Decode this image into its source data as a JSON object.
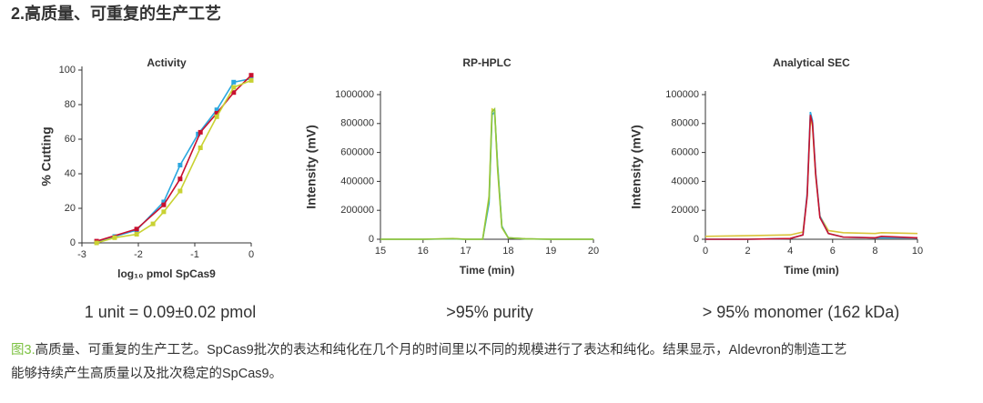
{
  "heading": "2.高质量、可重复的生产工艺",
  "chart_data": [
    {
      "type": "line",
      "title": "Activity",
      "xlabel": "log₁₀ pmol SpCas9",
      "ylabel": "% Cutting",
      "markers": true,
      "xlim": [
        -3,
        0
      ],
      "xticks": [
        -3,
        -2,
        -1,
        0
      ],
      "ylim": [
        0,
        100
      ],
      "yticks": [
        0,
        20,
        40,
        60,
        80,
        100
      ],
      "series": [
        {
          "color": "#2aa7df",
          "x": [
            -2.74,
            -2.42,
            -2.03,
            -1.55,
            -1.26,
            -0.94,
            -0.61,
            -0.31,
            0
          ],
          "values": [
            0.5,
            3.7,
            7.4,
            23.7,
            45,
            63,
            77,
            93,
            95
          ]
        },
        {
          "color": "#c8102e",
          "x": [
            -2.74,
            -2.03,
            -1.55,
            -1.26,
            -0.9,
            -0.61,
            -0.31,
            0
          ],
          "values": [
            1,
            8,
            22,
            37,
            64,
            75,
            87,
            97
          ]
        },
        {
          "color": "#c9d233",
          "x": [
            -2.74,
            -2.42,
            -2.03,
            -1.74,
            -1.55,
            -1.26,
            -0.9,
            -0.61,
            -0.31,
            0
          ],
          "values": [
            0,
            3,
            5,
            11,
            18,
            30,
            55,
            73,
            90,
            94
          ]
        }
      ]
    },
    {
      "type": "line",
      "title": "RP-HPLC",
      "xlabel": "Time (min)",
      "ylabel": "Intensity (mV)",
      "xlim": [
        15,
        20
      ],
      "xticks": [
        15,
        16,
        17,
        18,
        19,
        20
      ],
      "ylim": [
        0,
        1000000
      ],
      "yticks": [
        0,
        200000,
        400000,
        600000,
        800000,
        1000000
      ],
      "x": [
        15,
        16,
        16.7,
        17,
        17.4,
        17.55,
        17.62,
        17.68,
        17.75,
        17.85,
        18,
        18.4,
        19,
        20
      ],
      "series": [
        {
          "color": "#29a8e0",
          "values": [
            0,
            0,
            3000,
            0,
            0,
            250000,
            860000,
            880000,
            520000,
            90000,
            10000,
            3000,
            0,
            0
          ]
        },
        {
          "color": "#d4d23a",
          "values": [
            0,
            0,
            5000,
            0,
            0,
            300000,
            900000,
            890000,
            480000,
            80000,
            10000,
            4000,
            0,
            0
          ]
        },
        {
          "color": "#8dc63f",
          "values": [
            0,
            0,
            4000,
            0,
            0,
            280000,
            880000,
            900000,
            500000,
            85000,
            10000,
            3000,
            0,
            0
          ]
        }
      ]
    },
    {
      "type": "line",
      "title": "Analytical SEC",
      "xlabel": "Time (min)",
      "ylabel": "Intensity (mV)",
      "xlim": [
        0,
        10
      ],
      "xticks": [
        0,
        2,
        4,
        6,
        8,
        10
      ],
      "ylim": [
        0,
        100000
      ],
      "yticks": [
        0,
        20000,
        40000,
        60000,
        80000,
        100000
      ],
      "x": [
        0,
        2,
        4,
        4.6,
        4.8,
        4.95,
        5.05,
        5.2,
        5.4,
        5.8,
        6.5,
        8,
        8.3,
        10
      ],
      "series": [
        {
          "color": "#d9c43a",
          "values": [
            2000,
            2500,
            3000,
            5000,
            30000,
            84000,
            78000,
            44000,
            16000,
            6000,
            4500,
            4000,
            4500,
            4000
          ]
        },
        {
          "color": "#29a8e0",
          "values": [
            0,
            0,
            500,
            3000,
            32000,
            88000,
            82000,
            46000,
            16000,
            4000,
            1500,
            1000,
            1000,
            1000
          ]
        },
        {
          "color": "#c8102e",
          "values": [
            0,
            0,
            500,
            3000,
            30000,
            86000,
            80000,
            45000,
            15000,
            4000,
            1500,
            1000,
            2000,
            1000
          ]
        }
      ]
    }
  ],
  "summaries": [
    "1 unit = 0.09±0.02 pmol",
    ">95% purity",
    "> 95% monomer (162 kDa)"
  ],
  "caption": {
    "label": "图3.",
    "lines": [
      "高质量、可重复的生产工艺。SpCas9批次的表达和纯化在几个月的时间里以不同的规模进行了表达和纯化。结果显示，Aldevron的制造工艺",
      "能够持续产生高质量以及批次稳定的SpCas9。"
    ]
  }
}
